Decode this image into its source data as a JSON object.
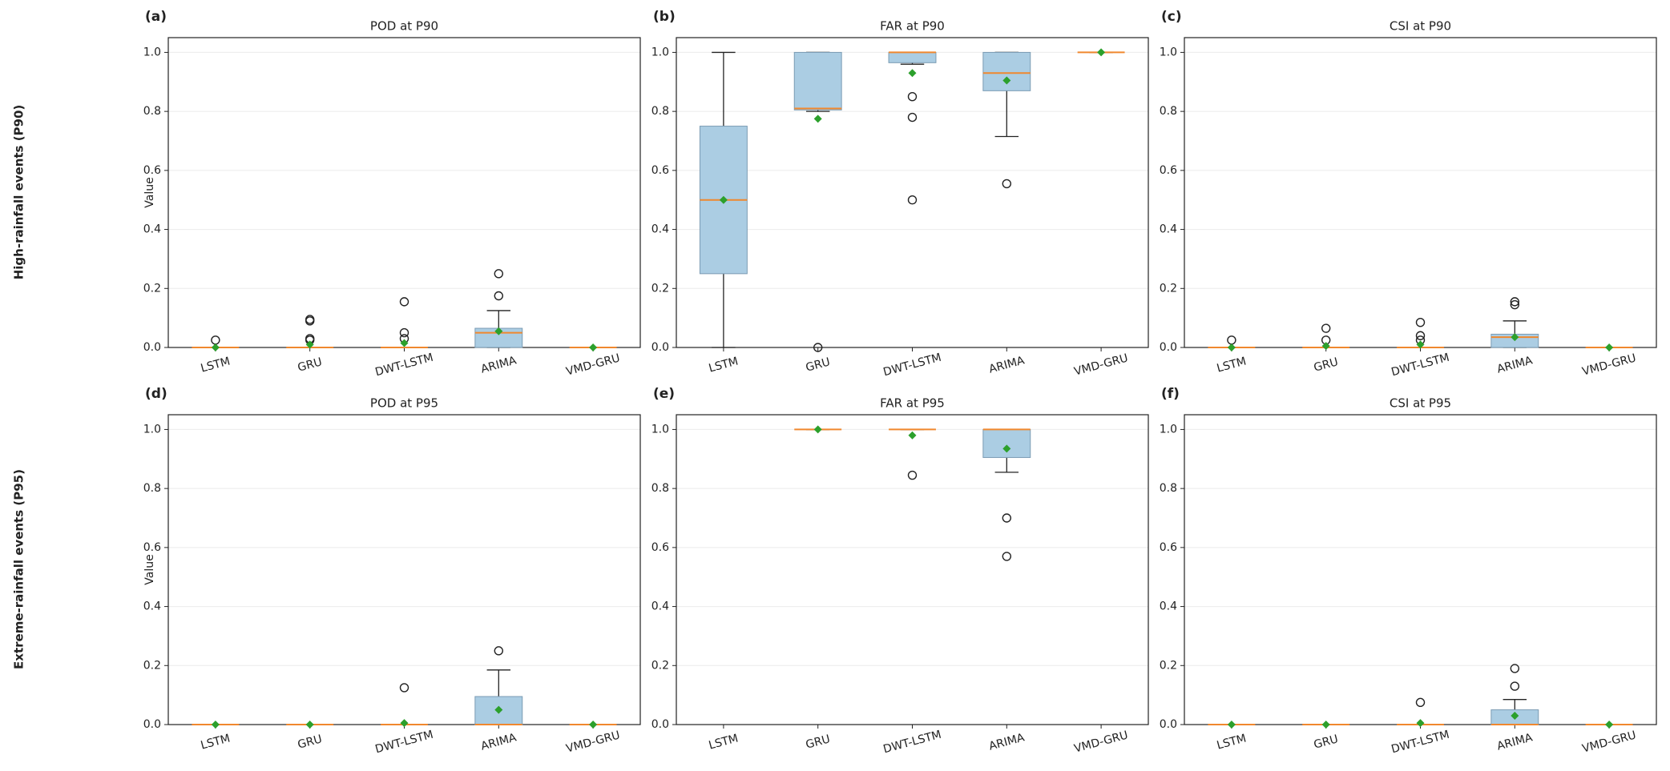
{
  "row_labels": [
    "High-rainfall events (P90)",
    "Extreme-rainfall events (P95)"
  ],
  "chart_data": [
    {
      "type": "box",
      "label": "(a)",
      "title": "POD at P90",
      "ylabel": "Value",
      "categories": [
        "LSTM",
        "GRU",
        "DWT-LSTM",
        "ARIMA",
        "VMD-GRU"
      ],
      "ylim": [
        0,
        1.05
      ],
      "yticks": [
        {
          "value": 0,
          "label": "0.0"
        },
        0.2,
        0.4,
        0.6,
        0.8,
        {
          "value": 1,
          "label": "1.0"
        }
      ],
      "grid": true,
      "box_color": "#abcde3",
      "median_color": "#f0882e",
      "mean_color": "#2ca02c",
      "boxes": [
        {
          "whislo": 0,
          "q1": 0,
          "med": 0,
          "q3": 0,
          "whishi": 0,
          "mean": 0,
          "fliers": [
            0.025
          ]
        },
        {
          "whislo": 0,
          "q1": 0,
          "med": 0,
          "q3": 0,
          "whishi": 0,
          "mean": 0.01,
          "fliers": [
            0.025,
            0.03,
            0.09,
            0.095
          ]
        },
        {
          "whislo": 0,
          "q1": 0,
          "med": 0,
          "q3": 0,
          "whishi": 0,
          "mean": 0.015,
          "fliers": [
            0.03,
            0.05,
            0.155
          ]
        },
        {
          "whislo": 0,
          "q1": 0,
          "med": 0.05,
          "q3": 0.065,
          "whishi": 0.125,
          "mean": 0.055,
          "fliers": [
            0.175,
            0.25
          ]
        },
        {
          "whislo": 0,
          "q1": 0,
          "med": 0,
          "q3": 0,
          "whishi": 0,
          "mean": 0,
          "fliers": []
        }
      ]
    },
    {
      "type": "box",
      "label": "(b)",
      "title": "FAR at P90",
      "categories": [
        "LSTM",
        "GRU",
        "DWT-LSTM",
        "ARIMA",
        "VMD-GRU"
      ],
      "ylim": [
        0,
        1.05
      ],
      "yticks": [
        {
          "value": 0,
          "label": "0.0"
        },
        0.2,
        0.4,
        0.6,
        0.8,
        {
          "value": 1,
          "label": "1.0"
        }
      ],
      "grid": true,
      "box_color": "#abcde3",
      "median_color": "#f0882e",
      "mean_color": "#2ca02c",
      "boxes": [
        {
          "whislo": 0,
          "q1": 0.25,
          "med": 0.5,
          "q3": 0.75,
          "whishi": 1,
          "mean": 0.5,
          "fliers": []
        },
        {
          "whislo": 0.8,
          "q1": 0.805,
          "med": 0.81,
          "q3": 1,
          "whishi": 1,
          "mean": 0.775,
          "fliers": [
            0
          ]
        },
        {
          "whislo": 0.96,
          "q1": 0.965,
          "med": 1,
          "q3": 1,
          "whishi": 1,
          "mean": 0.93,
          "fliers": [
            0.5,
            0.78,
            0.85
          ]
        },
        {
          "whislo": 0.715,
          "q1": 0.87,
          "med": 0.93,
          "q3": 1,
          "whishi": 1,
          "mean": 0.905,
          "fliers": [
            0.555
          ]
        },
        {
          "whislo": 1,
          "q1": 1,
          "med": 1,
          "q3": 1,
          "whishi": 1,
          "mean": 1,
          "fliers": []
        }
      ]
    },
    {
      "type": "box",
      "label": "(c)",
      "title": "CSI at P90",
      "categories": [
        "LSTM",
        "GRU",
        "DWT-LSTM",
        "ARIMA",
        "VMD-GRU"
      ],
      "ylim": [
        0,
        1.05
      ],
      "yticks": [
        {
          "value": 0,
          "label": "0.0"
        },
        0.2,
        0.4,
        0.6,
        0.8,
        {
          "value": 1,
          "label": "1.0"
        }
      ],
      "grid": true,
      "box_color": "#abcde3",
      "median_color": "#f0882e",
      "mean_color": "#2ca02c",
      "boxes": [
        {
          "whislo": 0,
          "q1": 0,
          "med": 0,
          "q3": 0,
          "whishi": 0,
          "mean": 0,
          "fliers": [
            0.025
          ]
        },
        {
          "whislo": 0,
          "q1": 0,
          "med": 0,
          "q3": 0,
          "whishi": 0,
          "mean": 0.005,
          "fliers": [
            0.025,
            0.065
          ]
        },
        {
          "whislo": 0,
          "q1": 0,
          "med": 0,
          "q3": 0,
          "whishi": 0,
          "mean": 0.01,
          "fliers": [
            0.025,
            0.04,
            0.085
          ]
        },
        {
          "whislo": 0,
          "q1": 0,
          "med": 0.035,
          "q3": 0.045,
          "whishi": 0.09,
          "mean": 0.035,
          "fliers": [
            0.145,
            0.155
          ]
        },
        {
          "whislo": 0,
          "q1": 0,
          "med": 0,
          "q3": 0,
          "whishi": 0,
          "mean": 0,
          "fliers": []
        }
      ]
    },
    {
      "type": "box",
      "label": "(d)",
      "title": "POD at P95",
      "ylabel": "Value",
      "categories": [
        "LSTM",
        "GRU",
        "DWT-LSTM",
        "ARIMA",
        "VMD-GRU"
      ],
      "ylim": [
        0,
        1.05
      ],
      "yticks": [
        {
          "value": 0,
          "label": "0.0"
        },
        0.2,
        0.4,
        0.6,
        0.8,
        {
          "value": 1,
          "label": "1.0"
        }
      ],
      "grid": true,
      "box_color": "#abcde3",
      "median_color": "#f0882e",
      "mean_color": "#2ca02c",
      "boxes": [
        {
          "whislo": 0,
          "q1": 0,
          "med": 0,
          "q3": 0,
          "whishi": 0,
          "mean": 0,
          "fliers": []
        },
        {
          "whislo": 0,
          "q1": 0,
          "med": 0,
          "q3": 0,
          "whishi": 0,
          "mean": 0,
          "fliers": []
        },
        {
          "whislo": 0,
          "q1": 0,
          "med": 0,
          "q3": 0,
          "whishi": 0,
          "mean": 0.005,
          "fliers": [
            0.125
          ]
        },
        {
          "whislo": 0,
          "q1": 0,
          "med": 0,
          "q3": 0.095,
          "whishi": 0.185,
          "mean": 0.05,
          "fliers": [
            0.25
          ]
        },
        {
          "whislo": 0,
          "q1": 0,
          "med": 0,
          "q3": 0,
          "whishi": 0,
          "mean": 0,
          "fliers": []
        }
      ]
    },
    {
      "type": "box",
      "label": "(e)",
      "title": "FAR at P95",
      "categories": [
        "LSTM",
        "GRU",
        "DWT-LSTM",
        "ARIMA",
        "VMD-GRU"
      ],
      "ylim": [
        0,
        1.05
      ],
      "yticks": [
        {
          "value": 0,
          "label": "0.0"
        },
        0.2,
        0.4,
        0.6,
        0.8,
        {
          "value": 1,
          "label": "1.0"
        }
      ],
      "grid": true,
      "box_color": "#abcde3",
      "median_color": "#f0882e",
      "mean_color": "#2ca02c",
      "boxes": [
        null,
        {
          "whislo": 1,
          "q1": 1,
          "med": 1,
          "q3": 1,
          "whishi": 1,
          "mean": 1,
          "fliers": []
        },
        {
          "whislo": 1,
          "q1": 1,
          "med": 1,
          "q3": 1,
          "whishi": 1,
          "mean": 0.98,
          "fliers": [
            0.845
          ]
        },
        {
          "whislo": 0.855,
          "q1": 0.905,
          "med": 1,
          "q3": 1,
          "whishi": 1,
          "mean": 0.935,
          "fliers": [
            0.57,
            0.7
          ]
        },
        null
      ]
    },
    {
      "type": "box",
      "label": "(f)",
      "title": "CSI at P95",
      "categories": [
        "LSTM",
        "GRU",
        "DWT-LSTM",
        "ARIMA",
        "VMD-GRU"
      ],
      "ylim": [
        0,
        1.05
      ],
      "yticks": [
        {
          "value": 0,
          "label": "0.0"
        },
        0.2,
        0.4,
        0.6,
        0.8,
        {
          "value": 1,
          "label": "1.0"
        }
      ],
      "grid": true,
      "box_color": "#abcde3",
      "median_color": "#f0882e",
      "mean_color": "#2ca02c",
      "boxes": [
        {
          "whislo": 0,
          "q1": 0,
          "med": 0,
          "q3": 0,
          "whishi": 0,
          "mean": 0,
          "fliers": []
        },
        {
          "whislo": 0,
          "q1": 0,
          "med": 0,
          "q3": 0,
          "whishi": 0,
          "mean": 0,
          "fliers": []
        },
        {
          "whislo": 0,
          "q1": 0,
          "med": 0,
          "q3": 0,
          "whishi": 0,
          "mean": 0.005,
          "fliers": [
            0.075
          ]
        },
        {
          "whislo": 0,
          "q1": 0,
          "med": 0,
          "q3": 0.05,
          "whishi": 0.085,
          "mean": 0.03,
          "fliers": [
            0.13,
            0.19
          ]
        },
        {
          "whislo": 0,
          "q1": 0,
          "med": 0,
          "q3": 0,
          "whishi": 0,
          "mean": 0,
          "fliers": []
        }
      ]
    }
  ]
}
